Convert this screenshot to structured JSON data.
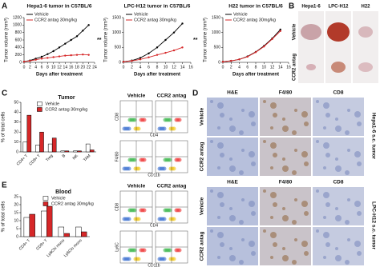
{
  "chart_data": [
    {
      "type": "line",
      "title": "Hepa1-6 tumor in C57BL/6",
      "x_label": "Days after treatment",
      "y_label": "Tumor volume (mm³)",
      "x": [
        0,
        2,
        4,
        6,
        8,
        10,
        12,
        14,
        16,
        18,
        20,
        22
      ],
      "series": [
        {
          "name": "Vehicle",
          "color": "#000000",
          "values": [
            20,
            50,
            100,
            150,
            220,
            300,
            400,
            500,
            600,
            700,
            850,
            1000
          ]
        },
        {
          "name": "CCR2 antag 30mg/kg",
          "color": "#d62728",
          "values": [
            20,
            40,
            70,
            100,
            120,
            140,
            160,
            180,
            190,
            200,
            210,
            200
          ]
        }
      ],
      "xlim": [
        0,
        24
      ],
      "xticks": [
        0,
        2,
        4,
        6,
        8,
        10,
        12,
        14,
        16,
        18,
        20,
        22,
        24
      ],
      "ylim": [
        0,
        1200
      ],
      "yticks": [
        0,
        200,
        400,
        600,
        800,
        1000,
        1200
      ],
      "annotation": "**"
    },
    {
      "type": "line",
      "title": "LPC-H12 tumor in C57BL/6",
      "x_label": "Days after treatment",
      "y_label": "Tumor volume (mm³)",
      "x": [
        0,
        2,
        4,
        6,
        8,
        10,
        12,
        14
      ],
      "series": [
        {
          "name": "Vehicle",
          "color": "#000000",
          "values": [
            20,
            60,
            150,
            300,
            500,
            750,
            1000,
            1300
          ]
        },
        {
          "name": "CCR2 antag 30mg/kg",
          "color": "#d62728",
          "values": [
            20,
            50,
            100,
            170,
            250,
            320,
            400,
            500
          ]
        }
      ],
      "xlim": [
        0,
        16
      ],
      "xticks": [
        0,
        2,
        4,
        6,
        8,
        10,
        12,
        14,
        16
      ],
      "ylim": [
        0,
        1500
      ],
      "yticks": [
        0,
        500,
        1000,
        1500
      ],
      "annotation": "**"
    },
    {
      "type": "line",
      "title": "H22 tumor in C57BL/6",
      "x_label": "Days after treatment",
      "y_label": "Tumor volume (mm³)",
      "x": [
        0,
        2,
        4,
        6,
        8,
        10,
        12,
        14
      ],
      "series": [
        {
          "name": "Vehicle",
          "color": "#000000",
          "values": [
            20,
            50,
            100,
            200,
            350,
            550,
            800,
            1100
          ]
        },
        {
          "name": "CCR2 antag 30mg/kg",
          "color": "#d62728",
          "values": [
            20,
            50,
            100,
            190,
            340,
            530,
            780,
            1050
          ]
        }
      ],
      "xlim": [
        0,
        16
      ],
      "xticks": [
        0,
        2,
        4,
        6,
        8,
        10,
        12,
        14,
        16
      ],
      "ylim": [
        0,
        1500
      ],
      "yticks": [
        0,
        500,
        1000,
        1500
      ]
    },
    {
      "type": "bar",
      "title": "Tumor",
      "y_label": "% of total cells",
      "categories": [
        "CD4+ T",
        "CD8+ T",
        "Treg",
        "B",
        "NK",
        "TAM"
      ],
      "series": [
        {
          "name": "Vehicle",
          "color": "#ffffff",
          "values": [
            10,
            7,
            8,
            1,
            1,
            8
          ]
        },
        {
          "name": "CCR2 antag 30mg/kg",
          "color": "#d62728",
          "values": [
            37,
            20,
            14,
            1,
            1,
            2
          ]
        }
      ],
      "ylim": [
        0,
        50
      ],
      "yticks": [
        0,
        10,
        20,
        30,
        40,
        50
      ]
    },
    {
      "type": "bar",
      "title": "Blood",
      "y_label": "% of total cells",
      "categories": [
        "CD4+ T",
        "CD8+ T",
        "Ly6Chi mono",
        "Ly6Clo mono"
      ],
      "series": [
        {
          "name": "Vehicle",
          "color": "#ffffff",
          "values": [
            12,
            16,
            6,
            6
          ]
        },
        {
          "name": "CCR2 antag 30mg/kg",
          "color": "#d62728",
          "values": [
            14,
            19,
            2,
            3
          ]
        }
      ],
      "ylim": [
        0,
        25
      ],
      "yticks": [
        0,
        5,
        10,
        15,
        20,
        25
      ]
    }
  ],
  "figure": {
    "panel_labels": [
      "A",
      "B",
      "C",
      "D",
      "E"
    ],
    "panel_b": {
      "columns": [
        "Hepa1-6",
        "LPC-H12",
        "H22"
      ],
      "rows": [
        "Vehicle",
        "CCR2 antag"
      ]
    },
    "flow_c": {
      "columns": [
        "Vehicle",
        "CCR2 antag"
      ],
      "axes": [
        "CD8",
        "CD4",
        "F4/80",
        "CD11b"
      ]
    },
    "flow_e": {
      "columns": [
        "Vehicle",
        "CCR2 antag"
      ],
      "axes": [
        "CD8",
        "CD4",
        "Ly6C",
        "CD11b"
      ]
    },
    "panel_d": {
      "columns": [
        "H&E",
        "F4/80",
        "CD8"
      ],
      "rows": [
        "Vehicle",
        "CCR2 antag"
      ],
      "groups": [
        "Hepa1-6 s.c. tumor",
        "LPC-H12 s.c. tumor"
      ]
    }
  }
}
